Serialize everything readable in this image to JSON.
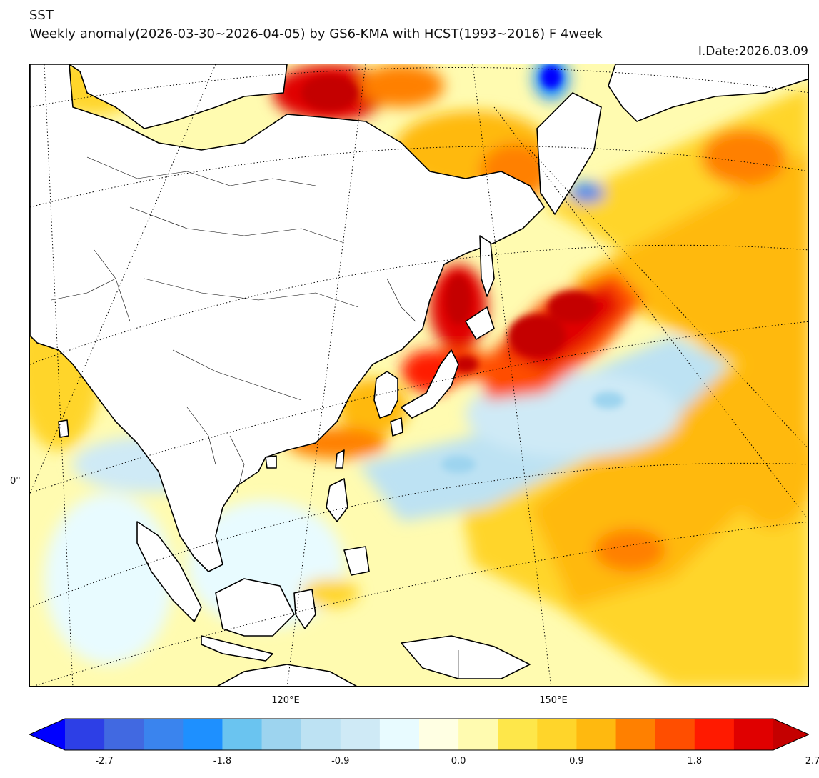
{
  "header": {
    "variable": "SST",
    "subtitle": "Weekly anomaly(2026-03-30~2026-04-05) by GS6-KMA with HCST(1993~2016) F 4week",
    "issue_date": "I.Date:2026.03.09"
  },
  "map": {
    "region": "East Asia and western North Pacific",
    "lon_labels": [
      "120°E",
      "150°E"
    ],
    "lat_labels": [
      "0°"
    ]
  },
  "colorbar": {
    "colors": [
      "#0000ff",
      "#2d3fe6",
      "#4169e1",
      "#3a84ee",
      "#1e90ff",
      "#6ac4f0",
      "#9dd4ef",
      "#bde2f3",
      "#cfeaf6",
      "#e8fbff",
      "#ffffe3",
      "#fffbb0",
      "#fee74a",
      "#ffd52a",
      "#ffb90f",
      "#ff8000",
      "#ff4e00",
      "#ff1a00",
      "#e00000",
      "#c40000"
    ],
    "tick_labels": [
      "-2.7",
      "-1.8",
      "-0.9",
      "0.0",
      "0.9",
      "1.8",
      "2.7"
    ]
  }
}
